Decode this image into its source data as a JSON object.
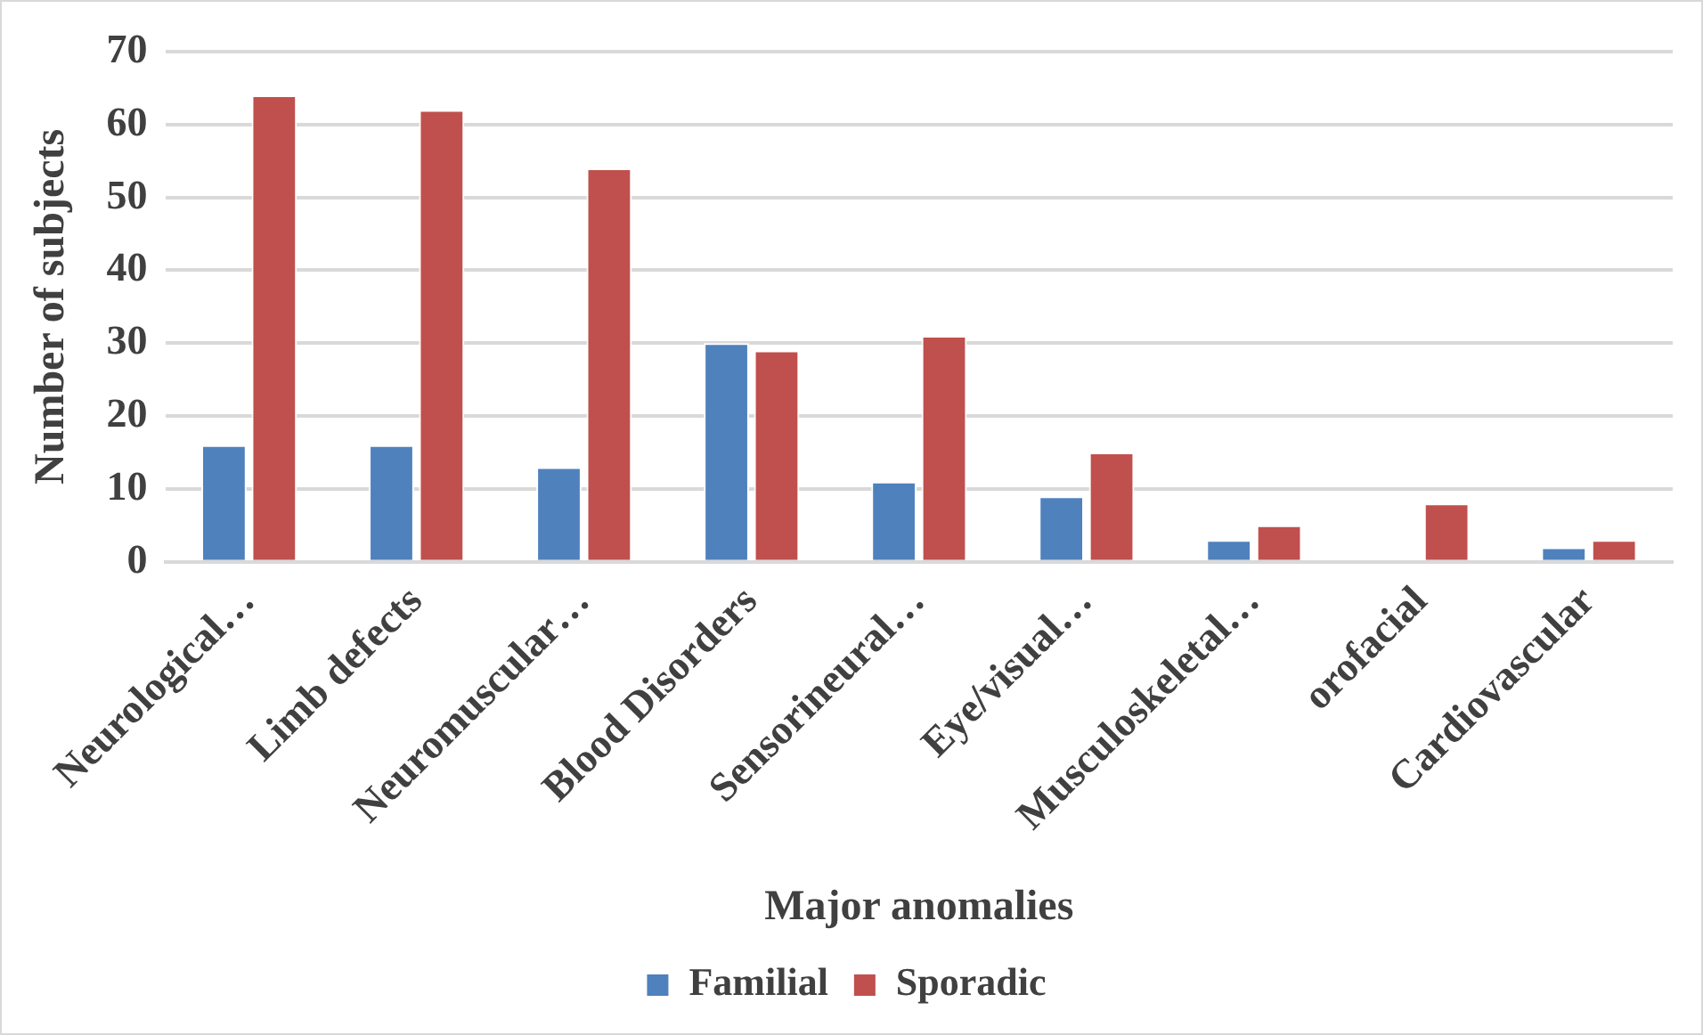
{
  "chart_data": {
    "type": "bar",
    "xlabel": "Major anomalies",
    "ylabel": "Number of subjects",
    "categories": [
      "Neurological…",
      "Limb defects",
      "Neuromuscular…",
      "Blood Disorders",
      "Sensorineural…",
      "Eye/visual…",
      "Musculoskeletal…",
      "orofacial",
      "Cardiovascular"
    ],
    "series": [
      {
        "name": "Familial",
        "color": "#4f81bd",
        "values": [
          16,
          16,
          13,
          30,
          11,
          9,
          3,
          0,
          2
        ]
      },
      {
        "name": "Sporadic",
        "color": "#c0504d",
        "values": [
          64,
          62,
          54,
          29,
          31,
          15,
          5,
          8,
          3
        ]
      }
    ],
    "ylim": [
      0,
      70
    ],
    "yticks": [
      0,
      10,
      20,
      30,
      40,
      50,
      60,
      70
    ],
    "grid": "y",
    "legend": "bottom"
  }
}
